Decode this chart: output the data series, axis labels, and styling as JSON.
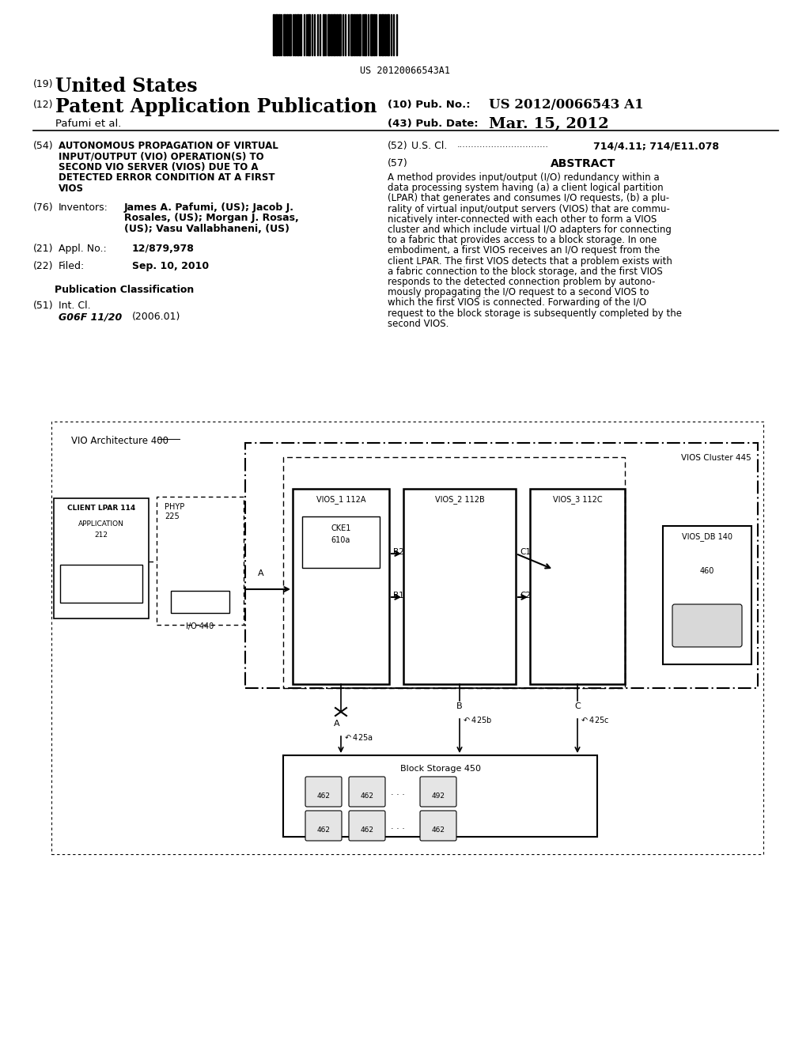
{
  "bg_color": "#ffffff",
  "barcode_text": "US 20120066543A1",
  "header": {
    "country_label": "(19)",
    "country": "United States",
    "type_label": "(12)",
    "type": "Patent Application Publication",
    "pub_no_label": "(10) Pub. No.:",
    "pub_no": "US 2012/0066543 A1",
    "date_label": "(43) Pub. Date:",
    "date": "Mar. 15, 2012",
    "inventor_label": "Pafumi et al."
  },
  "left_col": {
    "title_num": "(54)",
    "title_lines": [
      "AUTONOMOUS PROPAGATION OF VIRTUAL",
      "INPUT/OUTPUT (VIO) OPERATION(S) TO",
      "SECOND VIO SERVER (VIOS) DUE TO A",
      "DETECTED ERROR CONDITION AT A FIRST",
      "VIOS"
    ],
    "inventors_num": "(76)",
    "inventors_label": "Inventors:",
    "inv_lines": [
      "James A. Pafumi, (US); Jacob J.",
      "Rosales, (US); Morgan J. Rosas,",
      "(US); Vasu Vallabhaneni, (US)"
    ],
    "appl_num": "(21)",
    "appl_label": "Appl. No.:",
    "appl_no": "12/879,978",
    "filed_num": "(22)",
    "filed_label": "Filed:",
    "filed_date": "Sep. 10, 2010",
    "pub_class_label": "Publication Classification",
    "int_cl_num": "(51)",
    "int_cl_label": "Int. Cl.",
    "int_cl_val": "G06F 11/20",
    "int_cl_date": "(2006.01)"
  },
  "right_col": {
    "us_cl_num": "(52)",
    "us_cl_label": "U.S. Cl.",
    "us_cl_dots": "................................",
    "us_cl_val": "714/4.11; 714/E11.078",
    "abstract_num": "(57)",
    "abstract_label": "ABSTRACT",
    "abstract_lines": [
      "A method provides input/output (I/O) redundancy within a",
      "data processing system having (a) a client logical partition",
      "(LPAR) that generates and consumes I/O requests, (b) a plu-",
      "rality of virtual input/output servers (VIOS) that are commu-",
      "nicatively inter-connected with each other to form a VIOS",
      "cluster and which include virtual I/O adapters for connecting",
      "to a fabric that provides access to a block storage. In one",
      "embodiment, a first VIOS receives an I/O request from the",
      "client LPAR. The first VIOS detects that a problem exists with",
      "a fabric connection to the block storage, and the first VIOS",
      "responds to the detected connection problem by autono-",
      "mously propagating the I/O request to a second VIOS to",
      "which the first VIOS is connected. Forwarding of the I/O",
      "request to the block storage is subsequently completed by the",
      "second VIOS."
    ]
  }
}
